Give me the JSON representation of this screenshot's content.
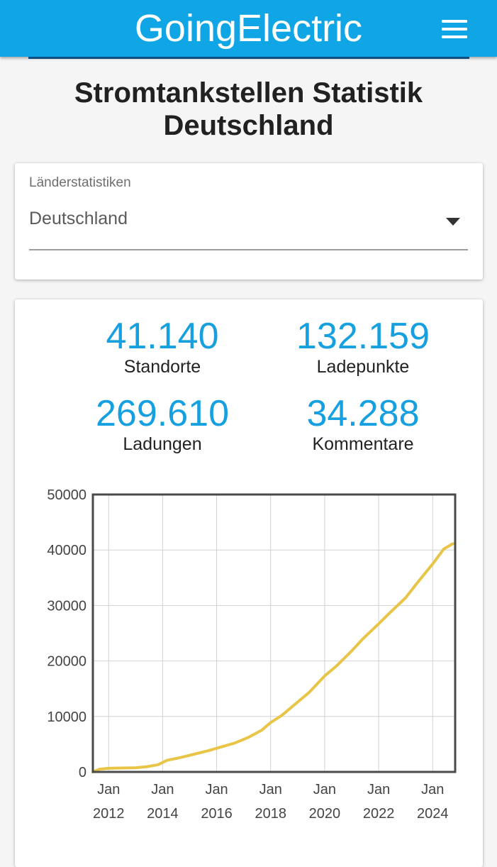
{
  "header": {
    "app_title": "GoingElectric",
    "menu_icon": "hamburger-menu-icon"
  },
  "page": {
    "title_line1": "Stromtankstellen Statistik",
    "title_line2": "Deutschland"
  },
  "country_select": {
    "label": "Länderstatistiken",
    "value": "Deutschland"
  },
  "stats": [
    {
      "value": "41.140",
      "label": "Standorte"
    },
    {
      "value": "132.159",
      "label": "Ladepunkte"
    },
    {
      "value": "269.610",
      "label": "Ladungen"
    },
    {
      "value": "34.288",
      "label": "Kommentare"
    }
  ],
  "colors": {
    "accent": "#10a6e6",
    "stat_value": "#16a0df",
    "line": "#e8c547"
  },
  "chart_data": {
    "type": "line",
    "title": "",
    "xlabel": "",
    "ylabel": "",
    "ylim": [
      0,
      50000
    ],
    "xlim": [
      "2011-06",
      "2024-11"
    ],
    "grid": true,
    "y_ticks": [
      0,
      10000,
      20000,
      30000,
      40000,
      50000
    ],
    "x_ticks": [
      {
        "date": "2012-01",
        "line1": "Jan",
        "line2": "2012"
      },
      {
        "date": "2014-01",
        "line1": "Jan",
        "line2": "2014"
      },
      {
        "date": "2016-01",
        "line1": "Jan",
        "line2": "2016"
      },
      {
        "date": "2018-01",
        "line1": "Jan",
        "line2": "2018"
      },
      {
        "date": "2020-01",
        "line1": "Jan",
        "line2": "2020"
      },
      {
        "date": "2022-01",
        "line1": "Jan",
        "line2": "2022"
      },
      {
        "date": "2024-01",
        "line1": "Jan",
        "line2": "2024"
      }
    ],
    "series": [
      {
        "name": "",
        "points": [
          [
            "2011-06",
            0
          ],
          [
            "2011-09",
            500
          ],
          [
            "2012-01",
            650
          ],
          [
            "2012-06",
            700
          ],
          [
            "2013-01",
            750
          ],
          [
            "2013-06",
            950
          ],
          [
            "2013-11",
            1300
          ],
          [
            "2014-03",
            2100
          ],
          [
            "2014-09",
            2600
          ],
          [
            "2015-03",
            3200
          ],
          [
            "2015-09",
            3800
          ],
          [
            "2016-03",
            4500
          ],
          [
            "2016-09",
            5200
          ],
          [
            "2017-03",
            6200
          ],
          [
            "2017-09",
            7500
          ],
          [
            "2018-01",
            8900
          ],
          [
            "2018-06",
            10200
          ],
          [
            "2019-01",
            12600
          ],
          [
            "2019-06",
            14300
          ],
          [
            "2020-01",
            17300
          ],
          [
            "2020-06",
            19000
          ],
          [
            "2021-01",
            21800
          ],
          [
            "2021-06",
            24000
          ],
          [
            "2022-01",
            26700
          ],
          [
            "2022-06",
            28700
          ],
          [
            "2023-01",
            31400
          ],
          [
            "2023-06",
            34000
          ],
          [
            "2024-01",
            37500
          ],
          [
            "2024-06",
            40200
          ],
          [
            "2024-10",
            41140
          ]
        ]
      }
    ]
  }
}
